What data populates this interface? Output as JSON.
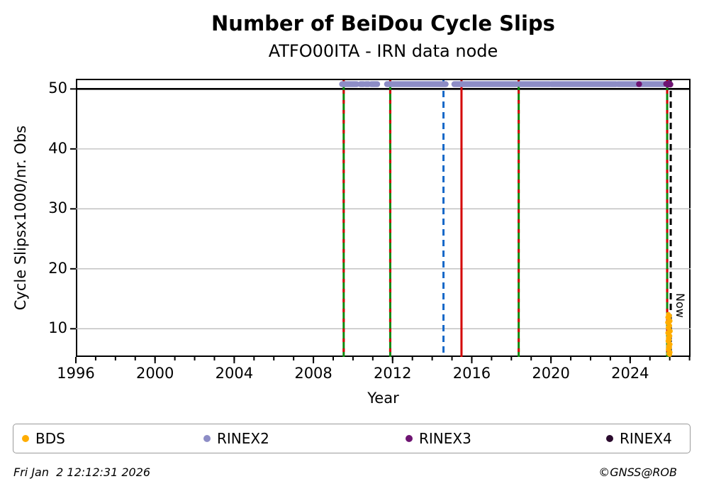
{
  "header": {
    "title": "Number of BeiDou Cycle Slips",
    "subtitle": "ATFO00ITA - IRN data node"
  },
  "footer": {
    "timestamp": "Fri Jan  2 12:12:31 2026",
    "copyright": "©GNSS@ROB"
  },
  "legend": {
    "items": [
      {
        "label": "BDS",
        "color": "#FFAD00"
      },
      {
        "label": "RINEX2",
        "color": "#8D8DC6"
      },
      {
        "label": "RINEX3",
        "color": "#6E1472"
      },
      {
        "label": "RINEX4",
        "color": "#2B0B2E"
      }
    ]
  },
  "chart_data": {
    "type": "scatter",
    "title": "Number of BeiDou Cycle Slips",
    "subtitle": "ATFO00ITA - IRN data node",
    "xlabel": "Year",
    "ylabel": "Cycle Slipsx1000/nr. Obs",
    "xlim": [
      1996,
      2027.05
    ],
    "ylim": [
      5.3,
      51.7
    ],
    "x_major_ticks": [
      1996,
      2000,
      2004,
      2008,
      2012,
      2016,
      2020,
      2024
    ],
    "x_minor_step": 1,
    "y_major_ticks": [
      10,
      20,
      30,
      40,
      50
    ],
    "grid": {
      "axis": "y",
      "color": "#bcbcbc"
    },
    "threshold_line": {
      "y": 50,
      "color": "#000000"
    },
    "now_line": {
      "x": 2026.05,
      "label": "Now",
      "color": "#000000",
      "dash": "9 6"
    },
    "event_lines": [
      {
        "x": 2009.53,
        "color": "#0E880E",
        "dash": null,
        "overlay_color": "#D40000",
        "overlay_dash": "5 9"
      },
      {
        "x": 2011.88,
        "color": "#0E880E",
        "dash": null,
        "overlay_color": "#D40000",
        "overlay_dash": "5 9"
      },
      {
        "x": 2014.57,
        "color": "#1668C8",
        "dash": "9 6",
        "overlay_color": null,
        "overlay_dash": null
      },
      {
        "x": 2015.48,
        "color": "#D40000",
        "dash": null,
        "overlay_color": null,
        "overlay_dash": null
      },
      {
        "x": 2018.37,
        "color": "#0E880E",
        "dash": null,
        "overlay_color": "#D40000",
        "overlay_dash": "5 9"
      },
      {
        "x": 2025.87,
        "color": "#0E880E",
        "dash": null,
        "overlay_color": "#D40000",
        "overlay_dash": "5 9"
      }
    ],
    "series": [
      {
        "name": "BDS",
        "color": "#FFAD00",
        "marker_px": 3.4,
        "points": [
          [
            2025.93,
            12.4
          ],
          [
            2025.99,
            12.15
          ],
          [
            2025.9,
            11.9
          ],
          [
            2025.96,
            11.6
          ],
          [
            2026.02,
            11.3
          ],
          [
            2025.89,
            11.05
          ],
          [
            2025.95,
            10.8
          ],
          [
            2026.0,
            10.5
          ],
          [
            2025.92,
            10.2
          ],
          [
            2025.97,
            9.9
          ],
          [
            2026.03,
            9.6
          ],
          [
            2025.9,
            9.3
          ],
          [
            2025.95,
            9.05
          ],
          [
            2026.01,
            8.8
          ],
          [
            2025.93,
            8.5
          ],
          [
            2025.98,
            8.2
          ],
          [
            2025.91,
            7.95
          ],
          [
            2025.96,
            7.7
          ],
          [
            2026.02,
            7.4
          ],
          [
            2025.94,
            7.1
          ],
          [
            2025.99,
            6.85
          ],
          [
            2025.92,
            6.6
          ],
          [
            2025.97,
            6.3
          ],
          [
            2026.02,
            6.05
          ],
          [
            2025.95,
            5.85
          ],
          [
            2026.0,
            5.7
          ]
        ]
      },
      {
        "name": "RINEX2",
        "color": "#8D8DC6",
        "marker_px": 4.2,
        "band_y": 50.8,
        "segments": [
          [
            2009.45,
            2010.18
          ],
          [
            2010.38,
            2010.52
          ],
          [
            2010.65,
            2010.78
          ],
          [
            2010.93,
            2011.22
          ],
          [
            2011.72,
            2014.68
          ],
          [
            2015.12,
            2018.26
          ],
          [
            2018.42,
            2019.92
          ],
          [
            2020.02,
            2023.28
          ],
          [
            2023.38,
            2025.72
          ]
        ]
      },
      {
        "name": "RINEX3",
        "color": "#6E1472",
        "marker_px": 4.2,
        "points": [
          [
            2024.45,
            50.8
          ],
          [
            2025.82,
            50.85
          ],
          [
            2025.9,
            50.7
          ],
          [
            2025.97,
            50.95
          ],
          [
            2026.03,
            50.75
          ]
        ]
      },
      {
        "name": "RINEX4",
        "color": "#2B0B2E",
        "marker_px": 4.2,
        "points": []
      }
    ]
  }
}
